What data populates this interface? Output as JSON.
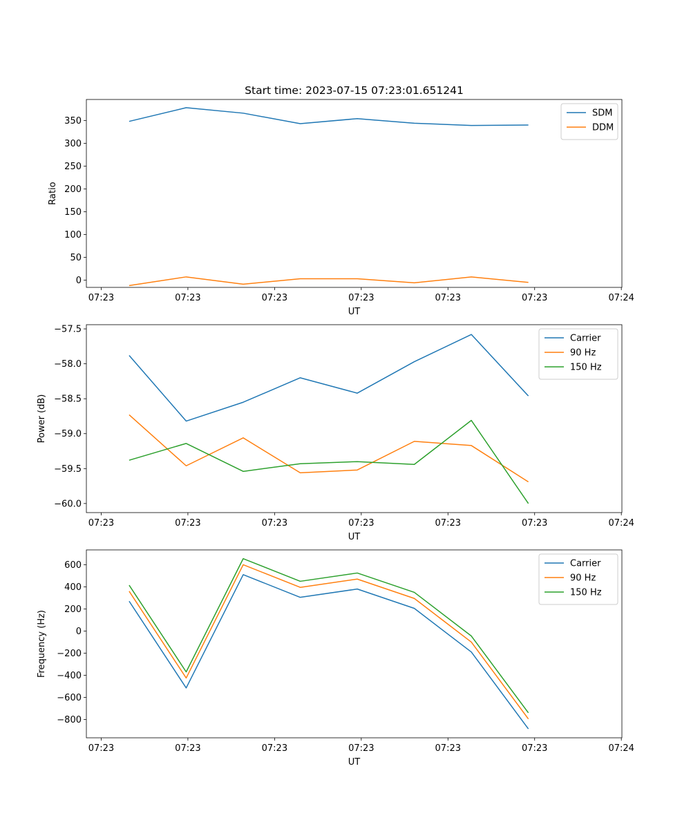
{
  "figure_title": "Start time: 2023-07-15 07:23:01.651241",
  "chart_data": [
    {
      "type": "line",
      "title": "Start time: 2023-07-15 07:23:01.651241",
      "xlabel": "UT",
      "ylabel": "Ratio",
      "x_tick_labels": [
        "07:23",
        "07:23",
        "07:23",
        "07:23",
        "07:23",
        "07:23",
        "07:24"
      ],
      "x_tick_index": [
        -0.49,
        1.03,
        2.55,
        4.07,
        5.59,
        7.11,
        8.63
      ],
      "xlim": [
        -0.75,
        8.64
      ],
      "ylim": [
        -16,
        396
      ],
      "y_ticks": [
        0,
        50,
        100,
        150,
        200,
        250,
        300,
        350
      ],
      "y_tick_labels": [
        "0",
        "50",
        "100",
        "150",
        "200",
        "250",
        "300",
        "350"
      ],
      "legend": "top-right",
      "series": [
        {
          "name": "SDM",
          "color": "#1f77b4",
          "values": [
            348,
            378,
            366,
            343,
            354,
            344,
            339,
            340
          ]
        },
        {
          "name": "DDM",
          "color": "#ff7f0e",
          "values": [
            -12,
            7,
            -9,
            3,
            3,
            -6,
            7,
            -5
          ]
        }
      ]
    },
    {
      "type": "line",
      "title": "",
      "xlabel": "UT",
      "ylabel": "Power (dB)",
      "x_tick_labels": [
        "07:23",
        "07:23",
        "07:23",
        "07:23",
        "07:23",
        "07:23",
        "07:24"
      ],
      "x_tick_index": [
        -0.49,
        1.03,
        2.55,
        4.07,
        5.59,
        7.11,
        8.63
      ],
      "xlim": [
        -0.75,
        8.64
      ],
      "ylim": [
        -60.13,
        -57.44
      ],
      "y_ticks": [
        -60.0,
        -59.5,
        -59.0,
        -58.5,
        -58.0,
        -57.5
      ],
      "y_tick_labels": [
        "−60.0",
        "−59.5",
        "−59.0",
        "−58.5",
        "−58.0",
        "−57.5"
      ],
      "legend": "top-right",
      "series": [
        {
          "name": "Carrier",
          "color": "#1f77b4",
          "values": [
            -57.88,
            -58.82,
            -58.55,
            -58.2,
            -58.42,
            -57.97,
            -57.58,
            -58.46
          ]
        },
        {
          "name": "90 Hz",
          "color": "#ff7f0e",
          "values": [
            -58.73,
            -59.46,
            -59.06,
            -59.56,
            -59.52,
            -59.11,
            -59.17,
            -59.69
          ]
        },
        {
          "name": "150 Hz",
          "color": "#2ca02c",
          "values": [
            -59.38,
            -59.14,
            -59.54,
            -59.43,
            -59.4,
            -59.44,
            -58.81,
            -60.0
          ]
        }
      ]
    },
    {
      "type": "line",
      "title": "",
      "xlabel": "UT",
      "ylabel": "Frequency (Hz)",
      "x_tick_labels": [
        "07:23",
        "07:23",
        "07:23",
        "07:23",
        "07:23",
        "07:23",
        "07:24"
      ],
      "x_tick_index": [
        -0.49,
        1.03,
        2.55,
        4.07,
        5.59,
        7.11,
        8.63
      ],
      "xlim": [
        -0.75,
        8.64
      ],
      "ylim": [
        -966,
        734
      ],
      "y_ticks": [
        -800,
        -600,
        -400,
        -200,
        0,
        200,
        400,
        600
      ],
      "y_tick_labels": [
        "−800",
        "−600",
        "−400",
        "−200",
        "0",
        "200",
        "400",
        "600"
      ],
      "legend": "top-right",
      "series": [
        {
          "name": "Carrier",
          "color": "#1f77b4",
          "values": [
            270,
            -515,
            510,
            305,
            380,
            205,
            -190,
            -885
          ]
        },
        {
          "name": "90 Hz",
          "color": "#ff7f0e",
          "values": [
            360,
            -425,
            600,
            395,
            470,
            295,
            -100,
            -795
          ]
        },
        {
          "name": "150 Hz",
          "color": "#2ca02c",
          "values": [
            415,
            -370,
            655,
            450,
            525,
            350,
            -45,
            -740
          ]
        }
      ]
    }
  ]
}
